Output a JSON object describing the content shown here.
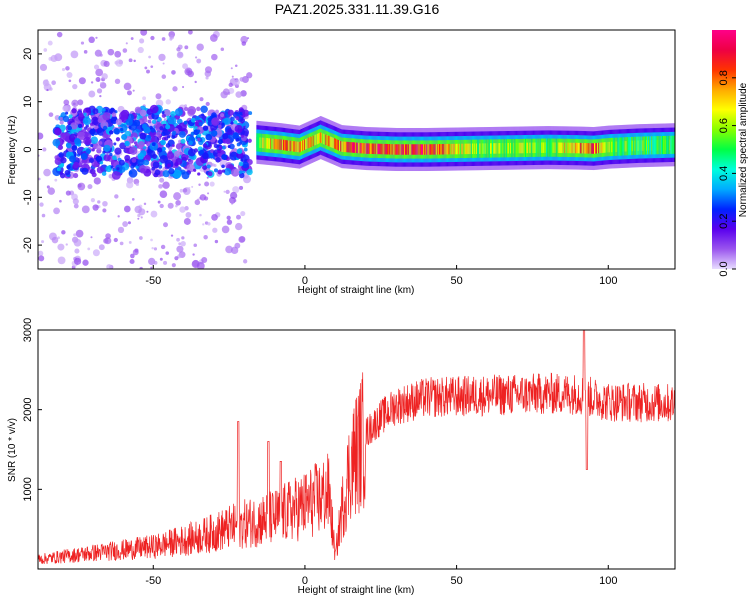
{
  "title": "PAZ1.2025.331.11.39.G16",
  "colors": {
    "snr_line": "#ee2222",
    "axis": "#000000",
    "background": "#ffffff"
  },
  "chart_data": [
    {
      "type": "heatmap",
      "xlabel": "Height of straight line (km)",
      "ylabel": "Frequency (Hz)",
      "xlim": [
        -88,
        122
      ],
      "ylim": [
        -25,
        25
      ],
      "x_ticks": [
        -50,
        0,
        50,
        100
      ],
      "y_ticks": [
        -20,
        -10,
        0,
        10,
        20
      ],
      "colorbar": {
        "label": "Normalized spectral amplitude",
        "range": [
          0,
          1
        ],
        "ticks": [
          0.0,
          0.2,
          0.4,
          0.6,
          0.8
        ],
        "colormap": [
          "#e8ddff",
          "#9a55ee",
          "#5a00ee",
          "#0022ff",
          "#00aaff",
          "#00ffdd",
          "#00ff44",
          "#88ff00",
          "#ffff00",
          "#ffaa00",
          "#ff3300",
          "#ee0044",
          "#ff0088"
        ]
      },
      "ridge": [
        {
          "x": -16,
          "y": 1.5,
          "a": 0.6
        },
        {
          "x": -8,
          "y": 1.0,
          "a": 0.85
        },
        {
          "x": -2,
          "y": 0.5,
          "a": 0.8
        },
        {
          "x": 5,
          "y": 2.5,
          "a": 0.75
        },
        {
          "x": 12,
          "y": 0.6,
          "a": 0.85
        },
        {
          "x": 20,
          "y": 0.2,
          "a": 0.95
        },
        {
          "x": 30,
          "y": 0.0,
          "a": 0.95
        },
        {
          "x": 40,
          "y": 0.0,
          "a": 0.95
        },
        {
          "x": 50,
          "y": 0.1,
          "a": 0.7
        },
        {
          "x": 60,
          "y": 0.2,
          "a": 0.6
        },
        {
          "x": 70,
          "y": 0.3,
          "a": 0.65
        },
        {
          "x": 80,
          "y": 0.4,
          "a": 0.6
        },
        {
          "x": 90,
          "y": 0.3,
          "a": 0.8
        },
        {
          "x": 95,
          "y": 0.2,
          "a": 0.9
        },
        {
          "x": 100,
          "y": 0.5,
          "a": 0.6
        },
        {
          "x": 110,
          "y": 0.8,
          "a": 0.55
        },
        {
          "x": 122,
          "y": 1.0,
          "a": 0.55
        }
      ]
    },
    {
      "type": "line",
      "xlabel": "Height of straight line (km)",
      "ylabel": "SNR (10 * v/v)",
      "xlim": [
        -88,
        122
      ],
      "ylim": [
        0,
        3000
      ],
      "x_ticks": [
        -50,
        0,
        50,
        100
      ],
      "y_ticks": [
        1000,
        2000,
        3000
      ],
      "envelope": [
        {
          "x": -88,
          "y": 120
        },
        {
          "x": -70,
          "y": 200
        },
        {
          "x": -50,
          "y": 280
        },
        {
          "x": -35,
          "y": 400
        },
        {
          "x": -22,
          "y": 550
        },
        {
          "x": -10,
          "y": 650
        },
        {
          "x": 0,
          "y": 800
        },
        {
          "x": 8,
          "y": 950
        },
        {
          "x": 10,
          "y": 150
        },
        {
          "x": 12,
          "y": 700
        },
        {
          "x": 15,
          "y": 1300
        },
        {
          "x": 20,
          "y": 1700
        },
        {
          "x": 25,
          "y": 1900
        },
        {
          "x": 30,
          "y": 2050
        },
        {
          "x": 40,
          "y": 2150
        },
        {
          "x": 60,
          "y": 2180
        },
        {
          "x": 80,
          "y": 2200
        },
        {
          "x": 90,
          "y": 2200
        },
        {
          "x": 100,
          "y": 2100
        },
        {
          "x": 122,
          "y": 2080
        }
      ],
      "spikes": [
        {
          "x": -22,
          "y": 1850
        },
        {
          "x": -12,
          "y": 1600
        },
        {
          "x": -8,
          "y": 1350
        },
        {
          "x": 92,
          "y": 3000
        },
        {
          "x": 93,
          "y": 1250
        }
      ]
    }
  ]
}
